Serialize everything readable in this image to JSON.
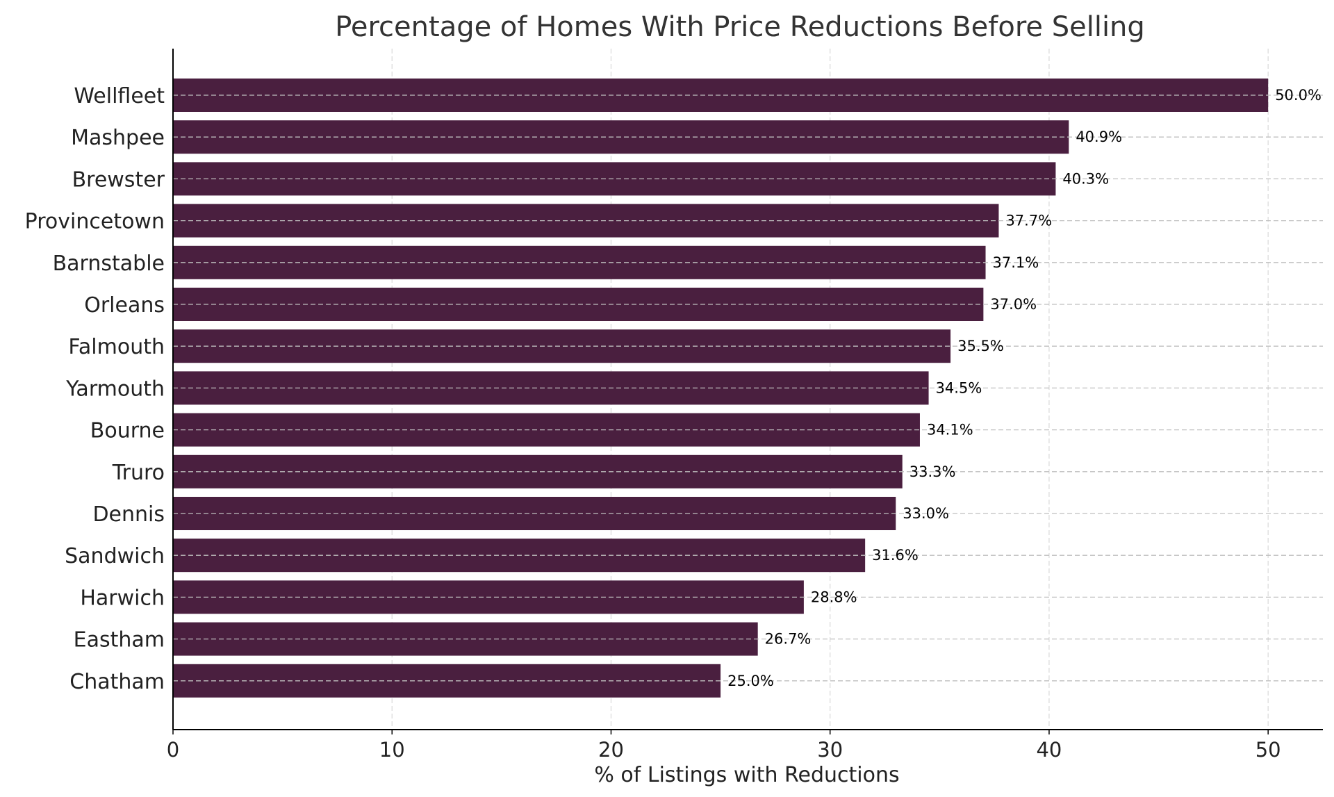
{
  "chart_data": {
    "type": "bar",
    "orientation": "horizontal",
    "title": "Percentage of Homes With Price Reductions Before Selling",
    "xlabel": "% of Listings with Reductions",
    "ylabel": "",
    "categories": [
      "Wellfleet",
      "Mashpee",
      "Brewster",
      "Provincetown",
      "Barnstable",
      "Orleans",
      "Falmouth",
      "Yarmouth",
      "Bourne",
      "Truro",
      "Dennis",
      "Sandwich",
      "Harwich",
      "Eastham",
      "Chatham"
    ],
    "values": [
      50.0,
      40.9,
      40.3,
      37.7,
      37.1,
      37.0,
      35.5,
      34.5,
      34.1,
      33.3,
      33.0,
      31.6,
      28.8,
      26.7,
      25.0
    ],
    "data_labels": [
      "50.0%",
      "40.9%",
      "40.3%",
      "37.7%",
      "37.1%",
      "37.0%",
      "35.5%",
      "34.5%",
      "34.1%",
      "33.3%",
      "33.0%",
      "31.6%",
      "28.8%",
      "26.7%",
      "25.0%"
    ],
    "xlim": [
      0,
      52.5
    ],
    "xticks": [
      0,
      10,
      20,
      30,
      40,
      50
    ],
    "xtick_labels": [
      "0",
      "10",
      "20",
      "30",
      "40",
      "50"
    ],
    "grid": true,
    "bar_color": "#4a1f3f"
  }
}
